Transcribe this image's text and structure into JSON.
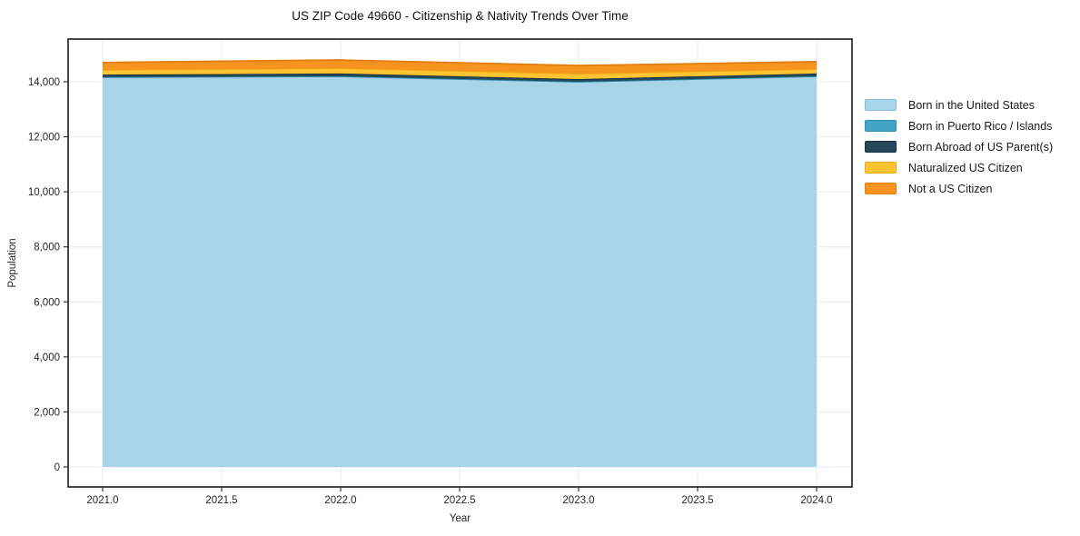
{
  "figure": {
    "title": "US ZIP Code 49660 - Citizenship & Nativity Trends Over Time",
    "xlabel": "Year",
    "ylabel": "Population"
  },
  "chart_data": {
    "type": "area",
    "stacked": true,
    "title": "US ZIP Code 49660 - Citizenship & Nativity Trends Over Time",
    "xlabel": "Year",
    "ylabel": "Population",
    "x": [
      2021,
      2022,
      2023,
      2024
    ],
    "series": [
      {
        "name": "Born in the United States",
        "color": "#a8d4e9",
        "edge": "#82bad7",
        "values": [
          14170,
          14200,
          14000,
          14200
        ]
      },
      {
        "name": "Born in Puerto Rico / Islands",
        "color": "#43a5c5",
        "edge": "#2f8fb0",
        "values": [
          0,
          0,
          0,
          0
        ]
      },
      {
        "name": "Born Abroad of US Parent(s)",
        "color": "#24485a",
        "edge": "#17323f",
        "values": [
          90,
          100,
          100,
          100
        ]
      },
      {
        "name": "Naturalized US Citizen",
        "color": "#fdc330",
        "edge": "#eda816",
        "values": [
          175,
          195,
          195,
          165
        ]
      },
      {
        "name": "Not a US Citizen",
        "color": "#f79420",
        "edge": "#e27d0e",
        "values": [
          265,
          295,
          295,
          265
        ]
      }
    ],
    "x_ticks": [
      {
        "value": 2021.0,
        "label": "2021.0"
      },
      {
        "value": 2021.5,
        "label": "2021.5"
      },
      {
        "value": 2022.0,
        "label": "2022.0"
      },
      {
        "value": 2022.5,
        "label": "2022.5"
      },
      {
        "value": 2023.0,
        "label": "2023.0"
      },
      {
        "value": 2023.5,
        "label": "2023.5"
      },
      {
        "value": 2024.0,
        "label": "2024.0"
      }
    ],
    "y_ticks": [
      {
        "value": 0,
        "label": "0"
      },
      {
        "value": 2000,
        "label": "2,000"
      },
      {
        "value": 4000,
        "label": "4,000"
      },
      {
        "value": 6000,
        "label": "6,000"
      },
      {
        "value": 8000,
        "label": "8,000"
      },
      {
        "value": 10000,
        "label": "10,000"
      },
      {
        "value": 12000,
        "label": "12,000"
      },
      {
        "value": 14000,
        "label": "14,000"
      }
    ],
    "xlim": [
      2021,
      2024
    ],
    "ylim": [
      0,
      14790
    ],
    "grid": true,
    "legend_position": "outside-right-top",
    "colors": {
      "grid": "#e9e9e9",
      "spine": "#1a1a1a",
      "tick": "#333333",
      "text": "#262626",
      "title": "#111111"
    }
  }
}
